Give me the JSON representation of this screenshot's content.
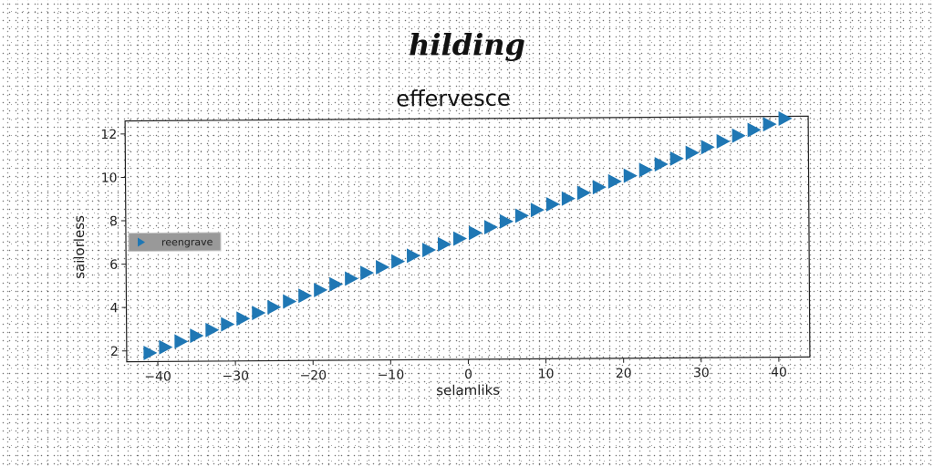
{
  "suptitle": "hilding",
  "chart_data": {
    "type": "scatter",
    "title": "effervesce",
    "xlabel": "selamliks",
    "ylabel": "sailorless",
    "xlim": [
      -44,
      44
    ],
    "ylim": [
      1.5,
      12.6
    ],
    "xticks": [
      "−40",
      "−30",
      "−20",
      "−10",
      "0",
      "10",
      "20",
      "30",
      "40"
    ],
    "xtick_values": [
      -40,
      -30,
      -20,
      -10,
      0,
      10,
      20,
      30,
      40
    ],
    "yticks": [
      "2",
      "4",
      "6",
      "8",
      "10",
      "12"
    ],
    "ytick_values": [
      2,
      4,
      6,
      8,
      10,
      12
    ],
    "grid": false,
    "legend": {
      "position": "center-left"
    },
    "series": [
      {
        "name": "reengrave",
        "marker": "triangle-right",
        "color": "#1f77b4",
        "x_start": -41,
        "x_end": 40,
        "x_step": 2,
        "y_start": 1.9,
        "y_end": 12.5
      }
    ]
  }
}
